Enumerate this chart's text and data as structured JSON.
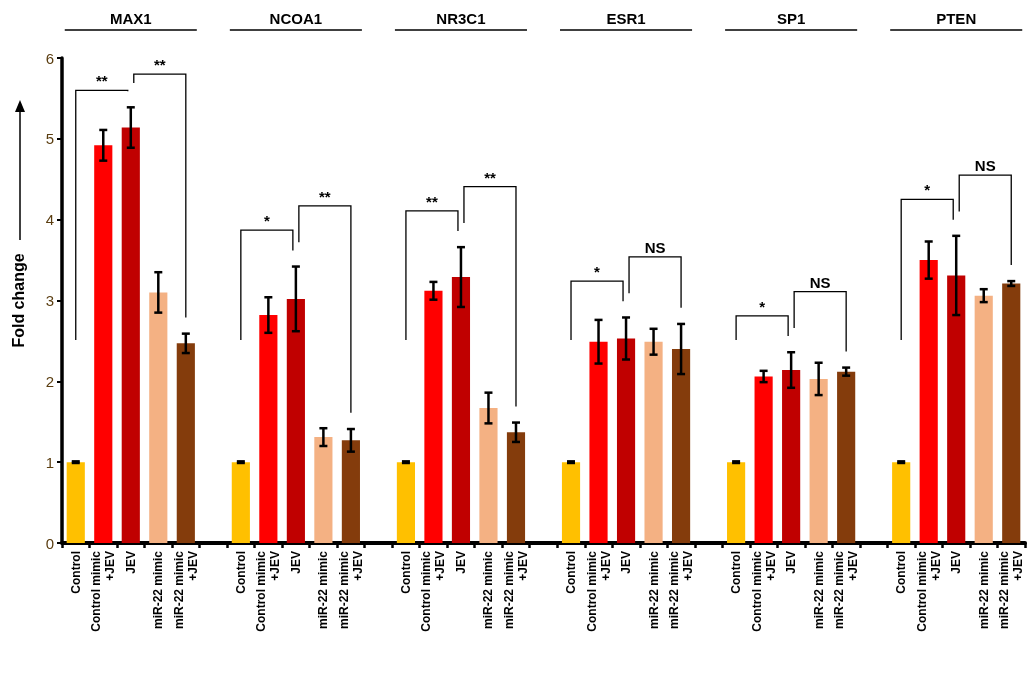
{
  "chart_data": {
    "type": "bar",
    "ylabel": "Fold change",
    "categories": [
      "Control",
      "Control mimic\n+JEV",
      "JEV",
      "miR-22 mimic",
      "miR-22 mimic\n+JEV",
      null,
      "Control",
      "Control mimic\n+JEV",
      "JEV",
      "miR-22 mimic",
      "miR-22 mimic\n+JEV",
      null,
      "Control",
      "Control mimic\n+JEV",
      "JEV",
      "miR-22 mimic",
      "miR-22 mimic\n+JEV",
      null,
      "Control",
      "Control mimic\n+JEV",
      "JEV",
      "miR-22 mimic",
      "miR-22 mimic\n+JEV",
      null,
      "Control",
      "Control mimic\n+JEV",
      "JEV",
      "miR-22 mimic",
      "miR-22 mimic\n+JEV",
      null,
      "Control",
      "Control mimic\n+JEV",
      "JEV",
      "miR-22 mimic",
      "miR-22 mimic\n+JEV"
    ],
    "values": [
      1,
      4.92,
      5.14,
      3.1,
      2.47,
      null,
      1,
      2.82,
      3.02,
      1.31,
      1.27,
      null,
      1,
      3.12,
      3.29,
      1.67,
      1.37,
      null,
      1,
      2.49,
      2.53,
      2.49,
      2.4,
      null,
      1,
      2.06,
      2.14,
      2.03,
      2.12,
      null,
      1,
      3.5,
      3.31,
      3.06,
      3.21
    ],
    "errors": [
      0.01,
      0.19,
      0.25,
      0.25,
      0.12,
      null,
      0.01,
      0.22,
      0.4,
      0.11,
      0.14,
      null,
      0.01,
      0.11,
      0.37,
      0.19,
      0.12,
      null,
      0.01,
      0.27,
      0.26,
      0.16,
      0.31,
      null,
      0.01,
      0.07,
      0.22,
      0.2,
      0.05,
      null,
      0.01,
      0.23,
      0.49,
      0.08,
      0.03
    ],
    "colors": [
      "#ffc000",
      "#ff0000",
      "#c00000",
      "#f4b183",
      "#843c0c",
      null,
      "#ffc000",
      "#ff0000",
      "#c00000",
      "#f4b183",
      "#843c0c",
      null,
      "#ffc000",
      "#ff0000",
      "#c00000",
      "#f4b183",
      "#843c0c",
      null,
      "#ffc000",
      "#ff0000",
      "#c00000",
      "#f4b183",
      "#843c0c",
      null,
      "#ffc000",
      "#ff0000",
      "#c00000",
      "#f4b183",
      "#843c0c",
      null,
      "#ffc000",
      "#ff0000",
      "#c00000",
      "#f4b183",
      "#843c0c"
    ],
    "ylim": [
      0,
      6
    ],
    "yticks": [
      0,
      1,
      2,
      3,
      4,
      5,
      6
    ],
    "grid": false,
    "annotations": [
      "MAX1",
      "NCOA1",
      "NR3C1",
      "ESR1",
      "SP1",
      "PTEN",
      "**",
      "**",
      "*",
      "**",
      "**",
      "**",
      "*",
      "NS",
      "*",
      "NS",
      "*",
      "NS"
    ]
  }
}
